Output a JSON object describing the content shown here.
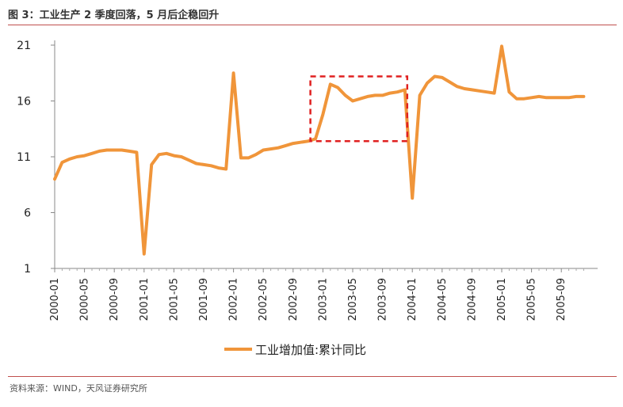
{
  "header": {
    "title": "图 3：工业生产 2 季度回落，5 月后企稳回升"
  },
  "footer": {
    "source": "资料来源：WIND，天风证券研究所"
  },
  "colors": {
    "line": "#f0953a",
    "highlight": "#e02020",
    "rule": "#c0504d"
  },
  "chart_data": {
    "type": "line",
    "title": "",
    "xlabel": "",
    "ylabel": "",
    "ylim": [
      1,
      21
    ],
    "yticks": [
      1,
      6,
      11,
      16,
      21
    ],
    "xtick_labels": [
      "2000-01",
      "2000-05",
      "2000-09",
      "2001-01",
      "2001-05",
      "2001-09",
      "2002-01",
      "2002-05",
      "2002-09",
      "2003-01",
      "2003-05",
      "2003-09",
      "2004-01",
      "2004-05",
      "2004-09",
      "2005-01",
      "2005-05",
      "2005-09"
    ],
    "grid": false,
    "legend_position": "bottom-center",
    "series": [
      {
        "name": "工业增加值:累计同比",
        "x": [
          "2000-01",
          "2000-02",
          "2000-03",
          "2000-04",
          "2000-05",
          "2000-06",
          "2000-07",
          "2000-08",
          "2000-09",
          "2000-10",
          "2000-11",
          "2000-12",
          "2001-01",
          "2001-02",
          "2001-03",
          "2001-04",
          "2001-05",
          "2001-06",
          "2001-07",
          "2001-08",
          "2001-09",
          "2001-10",
          "2001-11",
          "2001-12",
          "2002-01",
          "2002-02",
          "2002-03",
          "2002-04",
          "2002-05",
          "2002-06",
          "2002-07",
          "2002-08",
          "2002-09",
          "2002-10",
          "2002-11",
          "2002-12",
          "2003-01",
          "2003-02",
          "2003-03",
          "2003-04",
          "2003-05",
          "2003-06",
          "2003-07",
          "2003-08",
          "2003-09",
          "2003-10",
          "2003-11",
          "2003-12",
          "2004-01",
          "2004-02",
          "2004-03",
          "2004-04",
          "2004-05",
          "2004-06",
          "2004-07",
          "2004-08",
          "2004-09",
          "2004-10",
          "2004-11",
          "2004-12",
          "2005-01",
          "2005-02",
          "2005-03",
          "2005-04",
          "2005-05",
          "2005-06",
          "2005-07",
          "2005-08",
          "2005-09",
          "2005-10",
          "2005-11",
          "2005-12"
        ],
        "values": [
          9.0,
          10.5,
          10.8,
          11.0,
          11.1,
          11.3,
          11.5,
          11.6,
          11.6,
          11.6,
          11.5,
          11.4,
          2.3,
          10.3,
          11.2,
          11.3,
          11.1,
          11.0,
          10.7,
          10.4,
          10.3,
          10.2,
          10.0,
          9.9,
          18.5,
          10.9,
          10.9,
          11.2,
          11.6,
          11.7,
          11.8,
          12.0,
          12.2,
          12.3,
          12.4,
          12.6,
          14.8,
          17.5,
          17.2,
          16.5,
          16.0,
          16.2,
          16.4,
          16.5,
          16.5,
          16.7,
          16.8,
          17.0,
          7.3,
          16.5,
          17.6,
          18.2,
          18.1,
          17.7,
          17.3,
          17.1,
          17.0,
          16.9,
          16.8,
          16.7,
          20.9,
          16.8,
          16.2,
          16.2,
          16.3,
          16.4,
          16.3,
          16.3,
          16.3,
          16.3,
          16.4,
          16.4
        ]
      }
    ],
    "annotations": [
      {
        "type": "dashed-box",
        "x_range": [
          "2002-11",
          "2003-12"
        ],
        "y_range": [
          12.4,
          18.2
        ]
      }
    ]
  }
}
